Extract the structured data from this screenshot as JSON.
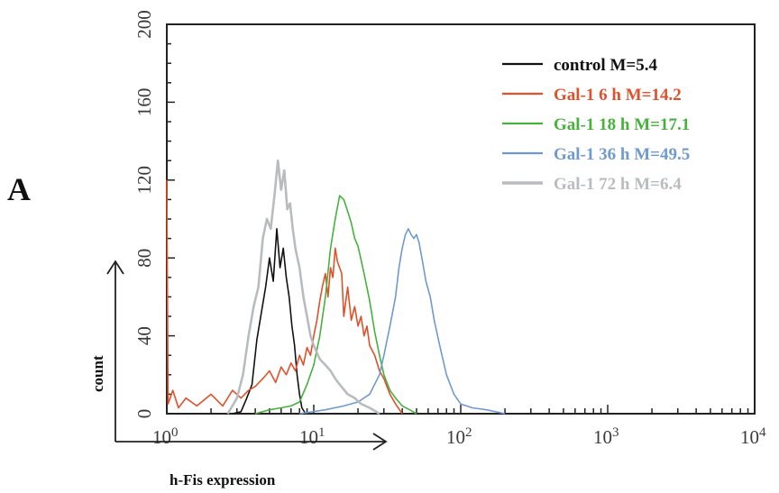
{
  "panel_label": "A",
  "chart_data": {
    "type": "line",
    "xlabel": "h-Fis expression",
    "ylabel": "count",
    "x_scale": "log",
    "xlim": [
      1,
      10000
    ],
    "ylim": [
      0,
      200
    ],
    "x_ticks": [
      {
        "value": 1,
        "base": "10",
        "exp": "0"
      },
      {
        "value": 10,
        "base": "10",
        "exp": "1"
      },
      {
        "value": 100,
        "base": "10",
        "exp": "2"
      },
      {
        "value": 1000,
        "base": "10",
        "exp": "3"
      },
      {
        "value": 10000,
        "base": "10",
        "exp": "4"
      }
    ],
    "y_ticks": [
      "0",
      "40",
      "80",
      "120",
      "160",
      "200"
    ],
    "legend_position": "top-right",
    "series": [
      {
        "name": "control M=5.4",
        "color": "#111111",
        "points": [
          [
            2.8,
            0
          ],
          [
            3.2,
            1
          ],
          [
            3.5,
            8
          ],
          [
            3.8,
            15
          ],
          [
            4.1,
            38
          ],
          [
            4.4,
            52
          ],
          [
            4.7,
            65
          ],
          [
            5.0,
            80
          ],
          [
            5.3,
            68
          ],
          [
            5.6,
            95
          ],
          [
            5.9,
            75
          ],
          [
            6.2,
            85
          ],
          [
            6.5,
            70
          ],
          [
            6.8,
            60
          ],
          [
            7.1,
            45
          ],
          [
            7.4,
            35
          ],
          [
            7.7,
            20
          ],
          [
            8.0,
            10
          ],
          [
            8.3,
            3
          ],
          [
            8.8,
            0
          ]
        ]
      },
      {
        "name": "Gal-1 6 h M=14.2",
        "color": "#e0502a",
        "points": [
          [
            1.0,
            120
          ],
          [
            1.02,
            5
          ],
          [
            1.1,
            12
          ],
          [
            1.2,
            3
          ],
          [
            1.35,
            8
          ],
          [
            1.6,
            4
          ],
          [
            2.0,
            10
          ],
          [
            2.4,
            4
          ],
          [
            2.8,
            12
          ],
          [
            3.2,
            8
          ],
          [
            3.6,
            12
          ],
          [
            4.0,
            14
          ],
          [
            4.5,
            18
          ],
          [
            5.0,
            22
          ],
          [
            5.5,
            16
          ],
          [
            6.0,
            24
          ],
          [
            6.5,
            20
          ],
          [
            7.0,
            26
          ],
          [
            7.5,
            22
          ],
          [
            8.0,
            30
          ],
          [
            8.5,
            25
          ],
          [
            9.0,
            34
          ],
          [
            9.5,
            30
          ],
          [
            10.0,
            40
          ],
          [
            10.5,
            48
          ],
          [
            11.0,
            58
          ],
          [
            11.5,
            66
          ],
          [
            12.0,
            72
          ],
          [
            12.5,
            60
          ],
          [
            13.0,
            75
          ],
          [
            13.5,
            70
          ],
          [
            14.0,
            85
          ],
          [
            14.5,
            78
          ],
          [
            15.0,
            75
          ],
          [
            15.5,
            72
          ],
          [
            16.0,
            50
          ],
          [
            17.0,
            65
          ],
          [
            18.0,
            48
          ],
          [
            19.0,
            55
          ],
          [
            20.0,
            45
          ],
          [
            21.0,
            50
          ],
          [
            22.0,
            40
          ],
          [
            23.0,
            45
          ],
          [
            24.0,
            35
          ],
          [
            26.0,
            30
          ],
          [
            28.0,
            22
          ],
          [
            30.0,
            18
          ],
          [
            33.0,
            10
          ],
          [
            36.0,
            5
          ],
          [
            40.0,
            0
          ]
        ]
      },
      {
        "name": "Gal-1 18 h M=17.1",
        "color": "#46b23c",
        "points": [
          [
            4.0,
            0
          ],
          [
            5.0,
            2
          ],
          [
            6.0,
            3
          ],
          [
            7.0,
            4
          ],
          [
            8.0,
            6
          ],
          [
            9.0,
            15
          ],
          [
            10.0,
            25
          ],
          [
            11.0,
            40
          ],
          [
            12.0,
            60
          ],
          [
            13.0,
            85
          ],
          [
            14.0,
            100
          ],
          [
            15.0,
            112
          ],
          [
            16.0,
            110
          ],
          [
            17.0,
            104
          ],
          [
            18.0,
            98
          ],
          [
            19.0,
            90
          ],
          [
            20.0,
            86
          ],
          [
            22.0,
            72
          ],
          [
            24.0,
            58
          ],
          [
            26.0,
            42
          ],
          [
            28.0,
            30
          ],
          [
            30.0,
            20
          ],
          [
            33.0,
            12
          ],
          [
            36.0,
            8
          ],
          [
            40.0,
            4
          ],
          [
            45.0,
            2
          ],
          [
            50.0,
            0
          ]
        ]
      },
      {
        "name": "Gal-1 36 h M=49.5",
        "color": "#6f9ad0",
        "points": [
          [
            8.0,
            0
          ],
          [
            12.0,
            2
          ],
          [
            16.0,
            4
          ],
          [
            20.0,
            6
          ],
          [
            24.0,
            10
          ],
          [
            28.0,
            20
          ],
          [
            30.0,
            30
          ],
          [
            33.0,
            45
          ],
          [
            36.0,
            60
          ],
          [
            38.0,
            75
          ],
          [
            40.0,
            85
          ],
          [
            42.0,
            92
          ],
          [
            44.0,
            95
          ],
          [
            46.0,
            92
          ],
          [
            48.0,
            90
          ],
          [
            50.0,
            92
          ],
          [
            52.0,
            88
          ],
          [
            55.0,
            78
          ],
          [
            58.0,
            68
          ],
          [
            62.0,
            60
          ],
          [
            66.0,
            48
          ],
          [
            72.0,
            35
          ],
          [
            80.0,
            20
          ],
          [
            90.0,
            10
          ],
          [
            100.0,
            5
          ],
          [
            120.0,
            3
          ],
          [
            150.0,
            2
          ],
          [
            200.0,
            0
          ]
        ]
      },
      {
        "name": "Gal-1 72 h M=6.4",
        "color": "#b9bcbf",
        "points": [
          [
            2.6,
            0
          ],
          [
            3.0,
            8
          ],
          [
            3.3,
            20
          ],
          [
            3.6,
            40
          ],
          [
            3.9,
            55
          ],
          [
            4.2,
            65
          ],
          [
            4.5,
            90
          ],
          [
            4.8,
            100
          ],
          [
            5.1,
            95
          ],
          [
            5.4,
            112
          ],
          [
            5.7,
            130
          ],
          [
            6.0,
            115
          ],
          [
            6.3,
            125
          ],
          [
            6.6,
            105
          ],
          [
            6.9,
            108
          ],
          [
            7.2,
            95
          ],
          [
            7.5,
            85
          ],
          [
            8.0,
            75
          ],
          [
            8.5,
            60
          ],
          [
            9.0,
            50
          ],
          [
            9.5,
            40
          ],
          [
            10.0,
            35
          ],
          [
            11.0,
            28
          ],
          [
            12.0,
            25
          ],
          [
            13.0,
            22
          ],
          [
            14.0,
            18
          ],
          [
            15.0,
            15
          ],
          [
            17.0,
            10
          ],
          [
            19.0,
            8
          ],
          [
            21.0,
            5
          ],
          [
            24.0,
            3
          ],
          [
            28.0,
            0
          ]
        ]
      }
    ]
  }
}
